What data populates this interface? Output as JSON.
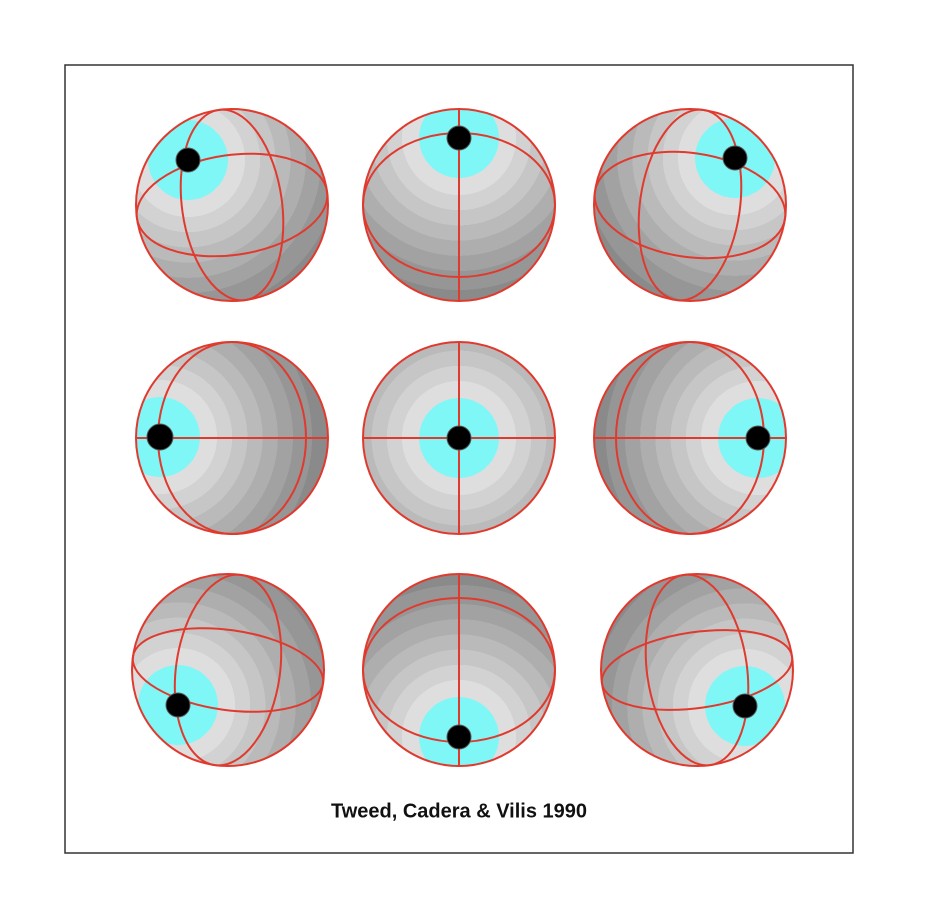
{
  "caption": "Tweed, Cadera & Vilis 1990"
}
